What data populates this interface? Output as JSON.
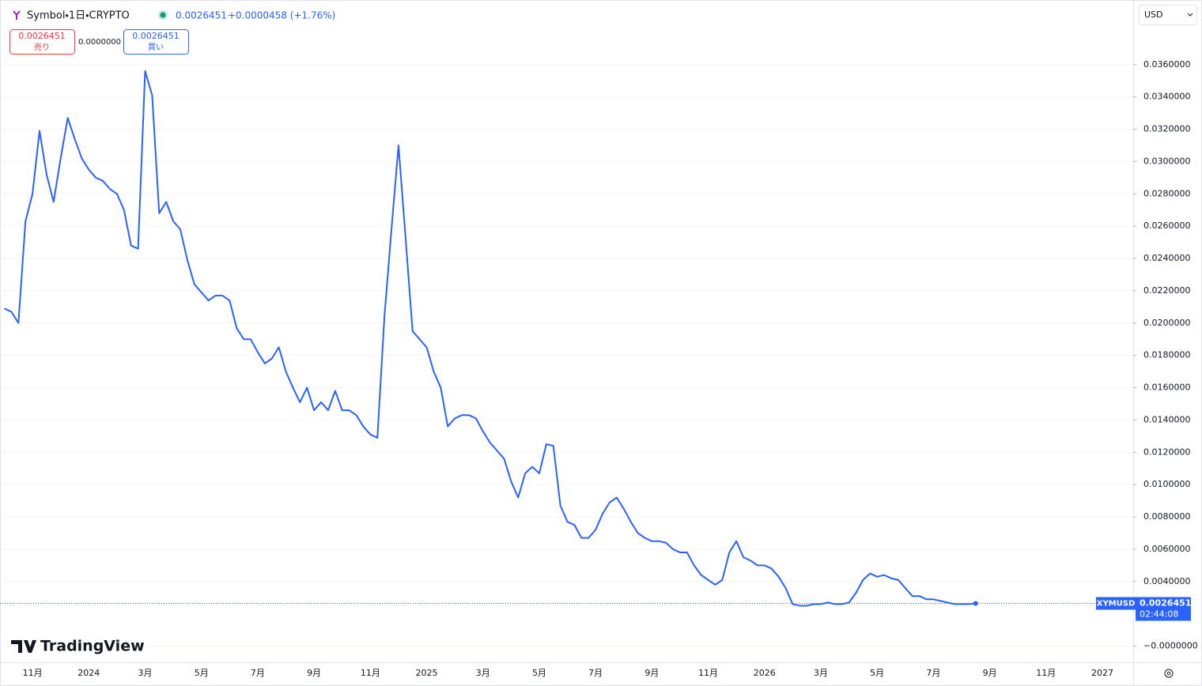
{
  "header": {
    "symbol": "Symbol・1日・CRYPTO",
    "price": "0.0026451",
    "change": "+0.0000458 (+1.76%)",
    "sell_label": "売り",
    "spread": "0.0000000",
    "buy_label": "買い",
    "currency": "USD",
    "countdown": "02:44:08",
    "logo": "TradingView"
  },
  "chart_data": {
    "type": "line",
    "categories": [
      null,
      null,
      null,
      null,
      "11月",
      null,
      null,
      null,
      null,
      null,
      null,
      null,
      "2024",
      null,
      null,
      null,
      null,
      null,
      null,
      null,
      "3月",
      null,
      null,
      null,
      null,
      null,
      null,
      null,
      "5月",
      null,
      null,
      null,
      null,
      null,
      null,
      null,
      "7月",
      null,
      null,
      null,
      null,
      null,
      null,
      null,
      "9月",
      null,
      null,
      null,
      null,
      null,
      null,
      null,
      "11月",
      null,
      null,
      null,
      null,
      null,
      null,
      null,
      "2025",
      null,
      null,
      null,
      null,
      null,
      null,
      null,
      "3月",
      null,
      null,
      null,
      null,
      null,
      null,
      null,
      "5月",
      null,
      null,
      null,
      null,
      null,
      null,
      null,
      "7月",
      null,
      null,
      null,
      null,
      null,
      null,
      null,
      "9月",
      null,
      null,
      null,
      null,
      null,
      null,
      null,
      "11月",
      null,
      null,
      null,
      null,
      null,
      null,
      null,
      "2026",
      null,
      null,
      null,
      null,
      null,
      null,
      null,
      "3月",
      null,
      null,
      null,
      null,
      null,
      null,
      null,
      "5月",
      null,
      null,
      null,
      null,
      null,
      null,
      null,
      "7月",
      null,
      null,
      null,
      null,
      null,
      null,
      null,
      "9月",
      null,
      null,
      null,
      null,
      null,
      null,
      null,
      "11月",
      null,
      null,
      null,
      null,
      null,
      null,
      null,
      "2027"
    ],
    "series": [
      {
        "name": "XYMUSD",
        "color": "#2962ff",
        "values": [
          0.0209,
          0.0207,
          0.02,
          0.0263,
          0.028,
          0.0319,
          0.0292,
          0.0275,
          0.0302,
          0.0327,
          0.0314,
          0.0302,
          0.0295,
          0.029,
          0.0288,
          0.0283,
          0.028,
          0.027,
          0.0248,
          0.0246,
          0.0356,
          0.0341,
          0.0268,
          0.0275,
          0.0263,
          0.0258,
          0.0239,
          0.0224,
          0.0219,
          0.0214,
          0.0217,
          0.0217,
          0.0214,
          0.0197,
          0.019,
          0.019,
          0.0182,
          0.0175,
          0.0178,
          0.0185,
          0.017,
          0.016,
          0.0151,
          0.016,
          0.0146,
          0.0151,
          0.0146,
          0.0158,
          0.0146,
          0.0146,
          0.0143,
          0.0136,
          0.0131,
          0.0129,
          0.0204,
          0.0258,
          0.031,
          0.0253,
          0.0195,
          0.019,
          0.0185,
          0.017,
          0.016,
          0.0136,
          0.0141,
          0.0143,
          0.0143,
          0.0141,
          0.0133,
          0.0126,
          0.0121,
          0.0116,
          0.0102,
          0.0092,
          0.0107,
          0.0111,
          0.0107,
          0.0125,
          0.0124,
          0.0087,
          0.0077,
          0.0075,
          0.0067,
          0.0067,
          0.0072,
          0.0082,
          0.0089,
          0.0092,
          0.0085,
          0.0077,
          0.007,
          0.0067,
          0.0065,
          0.0065,
          0.0064,
          0.006,
          0.0058,
          0.0058,
          0.005,
          0.0044,
          0.0041,
          0.0038,
          0.0041,
          0.0058,
          0.0065,
          0.0055,
          0.0053,
          0.005,
          0.005,
          0.0048,
          0.0043,
          0.0036,
          0.0026,
          0.0025,
          0.0025,
          0.0026,
          0.0026,
          0.0027,
          0.0026,
          0.0026,
          0.0027,
          0.0033,
          0.0041,
          0.0045,
          0.0043,
          0.0044,
          0.0042,
          0.0041,
          0.0036,
          0.0031,
          0.0031,
          0.0029,
          0.0029,
          0.0028,
          0.0027,
          0.0026,
          0.0026,
          0.0026,
          0.0026451,
          null,
          null,
          null,
          null,
          null,
          null,
          null,
          null,
          null,
          null,
          null,
          null,
          null,
          null,
          null,
          null,
          null,
          null
        ]
      }
    ],
    "ylim": [
      -0.001,
      0.04
    ],
    "yticks": [
      {
        "value": 0.036,
        "label": "0.0360000"
      },
      {
        "value": 0.034,
        "label": "0.0340000"
      },
      {
        "value": 0.032,
        "label": "0.0320000"
      },
      {
        "value": 0.03,
        "label": "0.0300000"
      },
      {
        "value": 0.028,
        "label": "0.0280000"
      },
      {
        "value": 0.026,
        "label": "0.0260000"
      },
      {
        "value": 0.024,
        "label": "0.0240000"
      },
      {
        "value": 0.022,
        "label": "0.0220000"
      },
      {
        "value": 0.02,
        "label": "0.0200000"
      },
      {
        "value": 0.018,
        "label": "0.0180000"
      },
      {
        "value": 0.016,
        "label": "0.0160000"
      },
      {
        "value": 0.014,
        "label": "0.0140000"
      },
      {
        "value": 0.012,
        "label": "0.0120000"
      },
      {
        "value": 0.01,
        "label": "0.0100000"
      },
      {
        "value": 0.008,
        "label": "0.0080000"
      },
      {
        "value": 0.006,
        "label": "0.0060000"
      },
      {
        "value": 0.004,
        "label": "0.0040000"
      },
      {
        "value": 0,
        "label": "−0.0000000"
      }
    ],
    "grid": true
  }
}
